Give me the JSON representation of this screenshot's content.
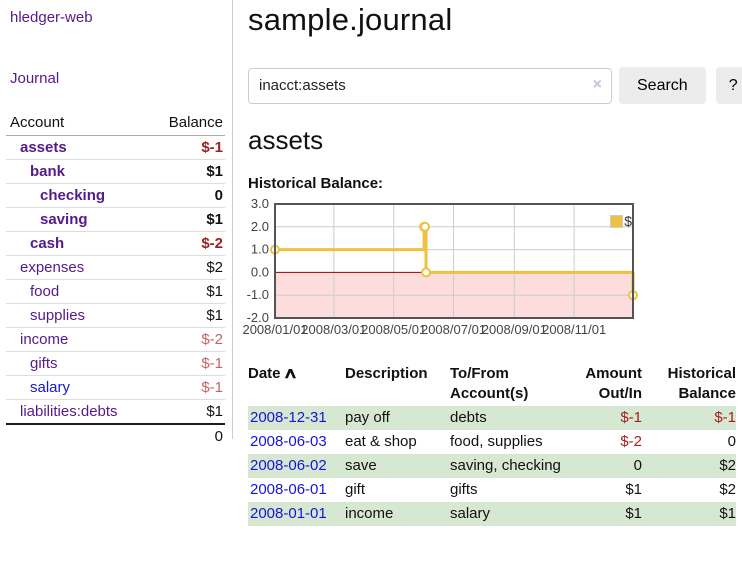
{
  "colors": {
    "link_purple": "#551a8b",
    "link_blue": "#1515dd",
    "neg_strong": "#9e1f1f",
    "neg_muted": "#c06565",
    "stripe_green": "#d7e8d2",
    "chart_line": "#edc240",
    "chart_neg_fill": "#fcdcdc",
    "chart_zero_line": "#9a0000",
    "chart_grid": "#cccccc",
    "chart_border": "#545454",
    "tick_text": "#444444"
  },
  "sidebar": {
    "app_title": "hledger-web",
    "journal_link": "Journal",
    "accounts_table": {
      "headers": {
        "account": "Account",
        "balance": "Balance"
      },
      "rows": [
        {
          "account": "assets",
          "balance": "$-1",
          "level": 1,
          "emph": true
        },
        {
          "account": "bank",
          "balance": "$1",
          "level": 2,
          "emph": true
        },
        {
          "account": "checking",
          "balance": "0",
          "level": 3,
          "emph": true
        },
        {
          "account": "saving",
          "balance": "$1",
          "level": 3,
          "emph": true
        },
        {
          "account": "cash",
          "balance": "$-2",
          "level": 2,
          "emph": true
        },
        {
          "account": "expenses",
          "balance": "$2",
          "level": 1,
          "emph": false
        },
        {
          "account": "food",
          "balance": "$1",
          "level": 2,
          "emph": false
        },
        {
          "account": "supplies",
          "balance": "$1",
          "level": 2,
          "emph": false
        },
        {
          "account": "income",
          "balance": "$-2",
          "level": 1,
          "emph": false
        },
        {
          "account": "gifts",
          "balance": "$-1",
          "level": 2,
          "emph": false
        },
        {
          "account": "salary",
          "balance": "$-1",
          "level": 2,
          "emph": false,
          "blue_link": true
        },
        {
          "account": "liabilities:debts",
          "balance": "$1",
          "level": 1,
          "emph": false
        }
      ],
      "total": "0"
    }
  },
  "main": {
    "title": "sample.journal",
    "search": {
      "value": "inacct:assets",
      "clear_icon": "×",
      "search_button": "Search",
      "help_button": "?"
    },
    "account_heading": "assets",
    "chart_title": "Historical Balance:",
    "register": {
      "headers": {
        "date": "Date",
        "sort_indicator": "∧",
        "description": "Description",
        "accounts": "To/From Account(s)",
        "amount": "Amount Out/In",
        "balance": "Historical Balance"
      },
      "rows": [
        {
          "date": "2008-12-31",
          "description": "pay off",
          "accounts": "debts",
          "amount": "$-1",
          "balance": "$-1"
        },
        {
          "date": "2008-06-03",
          "description": "eat & shop",
          "accounts": "food, supplies",
          "amount": "$-2",
          "balance": "0"
        },
        {
          "date": "2008-06-02",
          "description": "save",
          "accounts": "saving, checking",
          "amount": "0",
          "balance": "$2"
        },
        {
          "date": "2008-06-01",
          "description": "gift",
          "accounts": "gifts",
          "amount": "$1",
          "balance": "$2"
        },
        {
          "date": "2008-01-01",
          "description": "income",
          "accounts": "salary",
          "amount": "$1",
          "balance": "$1"
        }
      ]
    }
  },
  "chart_data": {
    "type": "line",
    "title": "Historical Balance:",
    "style": "step",
    "series": [
      {
        "name": "$",
        "points": [
          {
            "date": "2008-01-01",
            "day": 0,
            "value": 1
          },
          {
            "date": "2008-06-01",
            "day": 152,
            "value": 2
          },
          {
            "date": "2008-06-02",
            "day": 153,
            "value": 2
          },
          {
            "date": "2008-06-03",
            "day": 154,
            "value": 0
          },
          {
            "date": "2008-12-31",
            "day": 365,
            "value": -1
          }
        ]
      }
    ],
    "x_range_days": 365,
    "ylim": [
      -2,
      3
    ],
    "yticks": [
      {
        "value": 3,
        "label": "3.0"
      },
      {
        "value": 2,
        "label": "2.0"
      },
      {
        "value": 1,
        "label": "1.0"
      },
      {
        "value": 0,
        "label": "0.0"
      },
      {
        "value": -1,
        "label": "-1.0"
      },
      {
        "value": -2,
        "label": "-2.0"
      }
    ],
    "xticks": [
      {
        "day": 0,
        "label": "2008/01/01"
      },
      {
        "day": 60,
        "label": "2008/03/01"
      },
      {
        "day": 121,
        "label": "2008/05/01"
      },
      {
        "day": 182,
        "label": "2008/07/01"
      },
      {
        "day": 244,
        "label": "2008/09/01"
      },
      {
        "day": 305,
        "label": "2008/11/01"
      }
    ],
    "negative_region_shaded": true,
    "grid": true,
    "legend": {
      "label": "$",
      "position": "top-right"
    }
  }
}
